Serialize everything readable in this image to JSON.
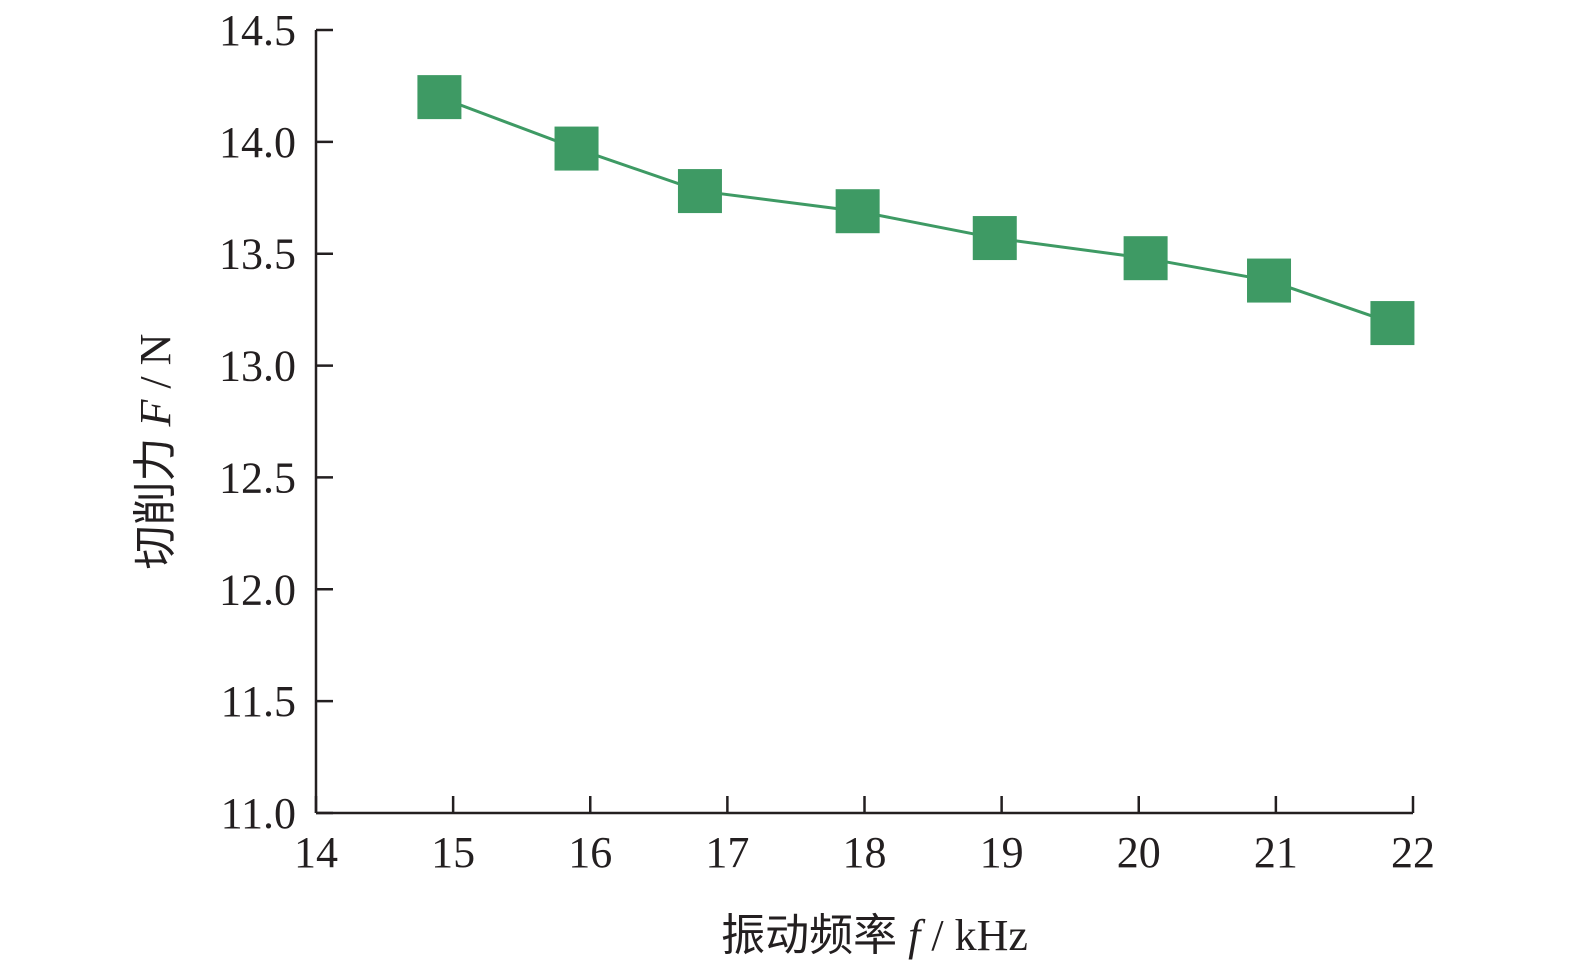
{
  "chart_data": {
    "type": "line",
    "title": "",
    "xlabel": {
      "prefix": "振动频率 ",
      "var": "f",
      "suffix": " / kHz"
    },
    "ylabel": {
      "prefix": "切削力 ",
      "var": "F",
      "suffix": " / N"
    },
    "xlim": [
      14,
      22
    ],
    "ylim": [
      11.0,
      14.5
    ],
    "xticks": [
      14,
      15,
      16,
      17,
      18,
      19,
      20,
      21,
      22
    ],
    "xtick_labels": [
      "14",
      "15",
      "16",
      "17",
      "18",
      "19",
      "20",
      "21",
      "22"
    ],
    "yticks": [
      11.0,
      11.5,
      12.0,
      12.5,
      13.0,
      13.5,
      14.0,
      14.5
    ],
    "ytick_labels": [
      "11.0",
      "11.5",
      "12.0",
      "12.5",
      "13.0",
      "13.5",
      "14.0",
      "14.5"
    ],
    "grid": false,
    "legend": "none",
    "series": [
      {
        "color": "#3e9a64",
        "marker": "square",
        "x": [
          14.9,
          15.9,
          16.8,
          17.95,
          18.95,
          20.05,
          20.95,
          21.85
        ],
        "y": [
          14.2,
          13.97,
          13.78,
          13.69,
          13.57,
          13.48,
          13.38,
          13.19
        ]
      }
    ]
  }
}
